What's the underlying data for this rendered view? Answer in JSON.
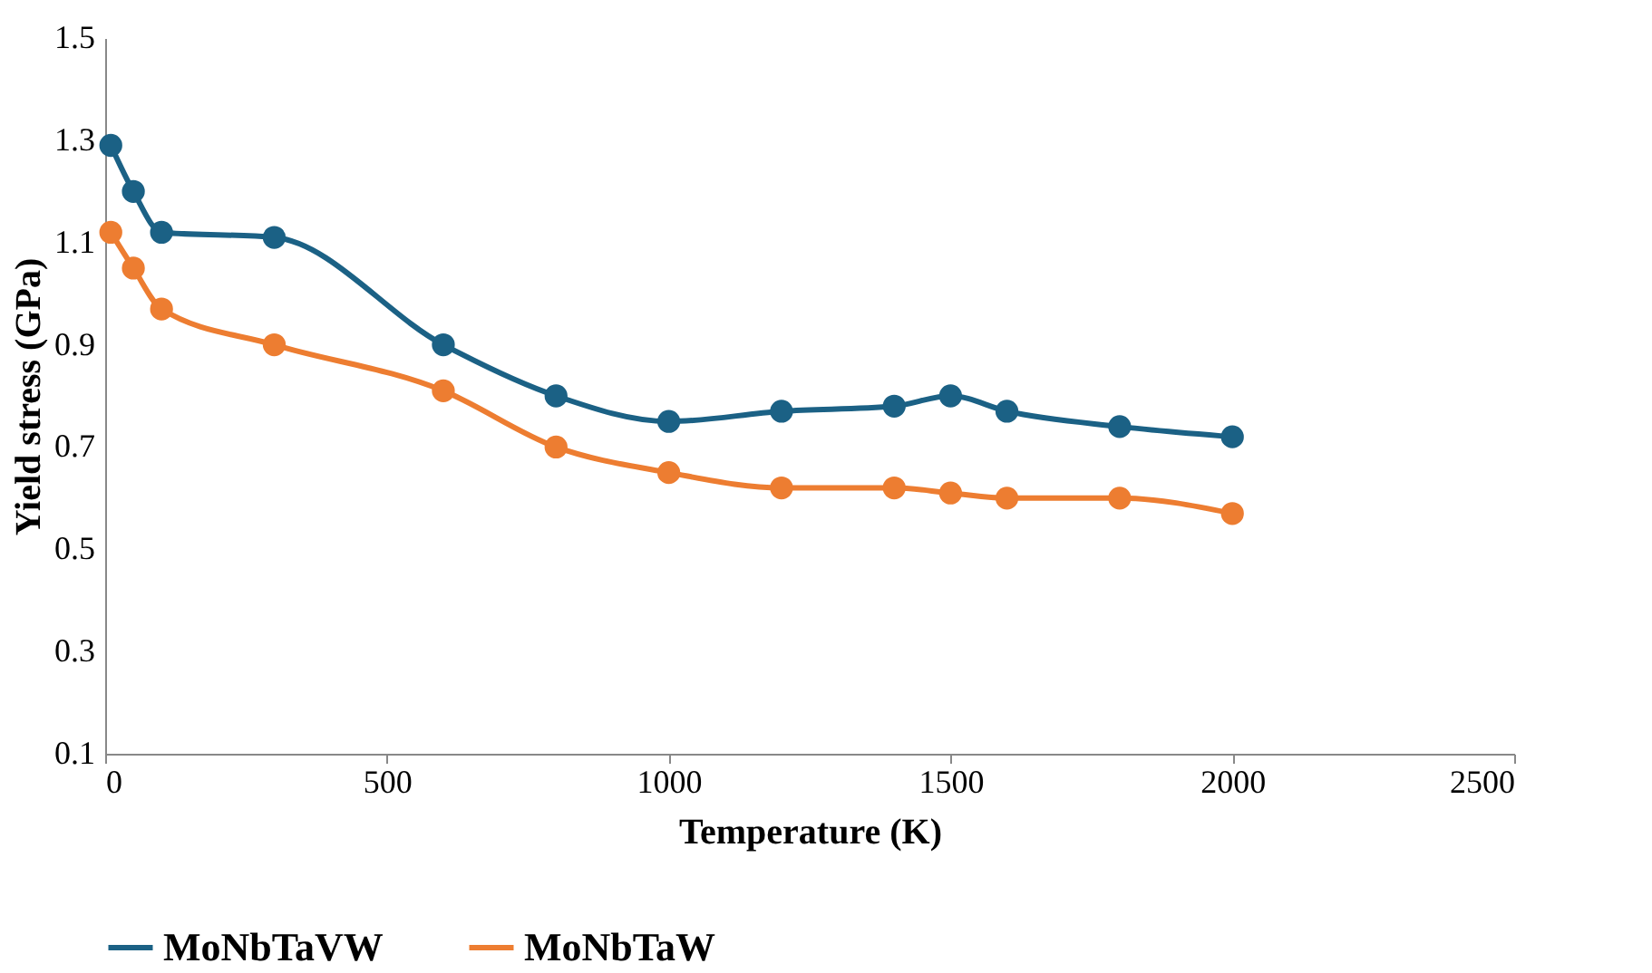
{
  "chart_data": {
    "type": "line",
    "xlabel": "Temperature (K)",
    "ylabel": "Yield stress (GPa)",
    "xlim": [
      0,
      2500
    ],
    "xticks": [
      0,
      500,
      1000,
      1500,
      2000,
      2500
    ],
    "ylim": [
      0.1,
      1.5
    ],
    "yticks": [
      0.1,
      0.3,
      0.5,
      0.7,
      0.9,
      1.1,
      1.3,
      1.5
    ],
    "x": [
      10,
      50,
      100,
      300,
      600,
      800,
      1000,
      1200,
      1400,
      1500,
      1600,
      1800,
      2000
    ],
    "series": [
      {
        "name": "MoNbTaVW",
        "color": "#1b6185",
        "values": [
          1.29,
          1.2,
          1.12,
          1.11,
          0.9,
          0.8,
          0.75,
          0.77,
          0.78,
          0.8,
          0.77,
          0.74,
          0.72
        ]
      },
      {
        "name": "MoNbTaW",
        "color": "#ed7d31",
        "values": [
          1.12,
          1.05,
          0.97,
          0.9,
          0.81,
          0.7,
          0.65,
          0.62,
          0.62,
          0.61,
          0.6,
          0.6,
          0.57
        ]
      }
    ],
    "legend": "bottom",
    "marker": "circle",
    "line_style": "solid",
    "grid": false
  }
}
